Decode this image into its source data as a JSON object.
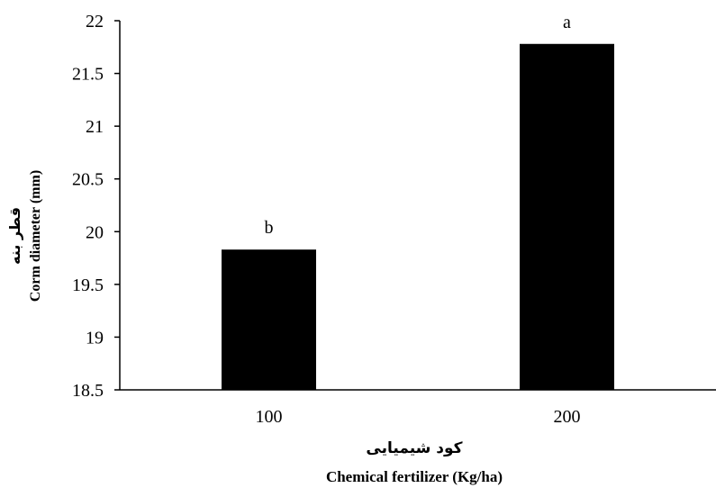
{
  "chart_data": {
    "type": "bar",
    "categories": [
      "100",
      "200"
    ],
    "values": [
      19.83,
      21.78
    ],
    "data_labels": [
      "b",
      "a"
    ],
    "ylim": [
      18.5,
      22
    ],
    "yticks": [
      18.5,
      19,
      19.5,
      20,
      20.5,
      21,
      21.5,
      22
    ],
    "xlabel_fa": "کود شیمیایی",
    "xlabel_en": "Chemical fertilizer (Kg/ha)",
    "ylabel_fa": "قطر بنه",
    "ylabel_en": "Corm diameter (mm)",
    "bar_color": "#000000",
    "grid": false,
    "legend": "none"
  }
}
